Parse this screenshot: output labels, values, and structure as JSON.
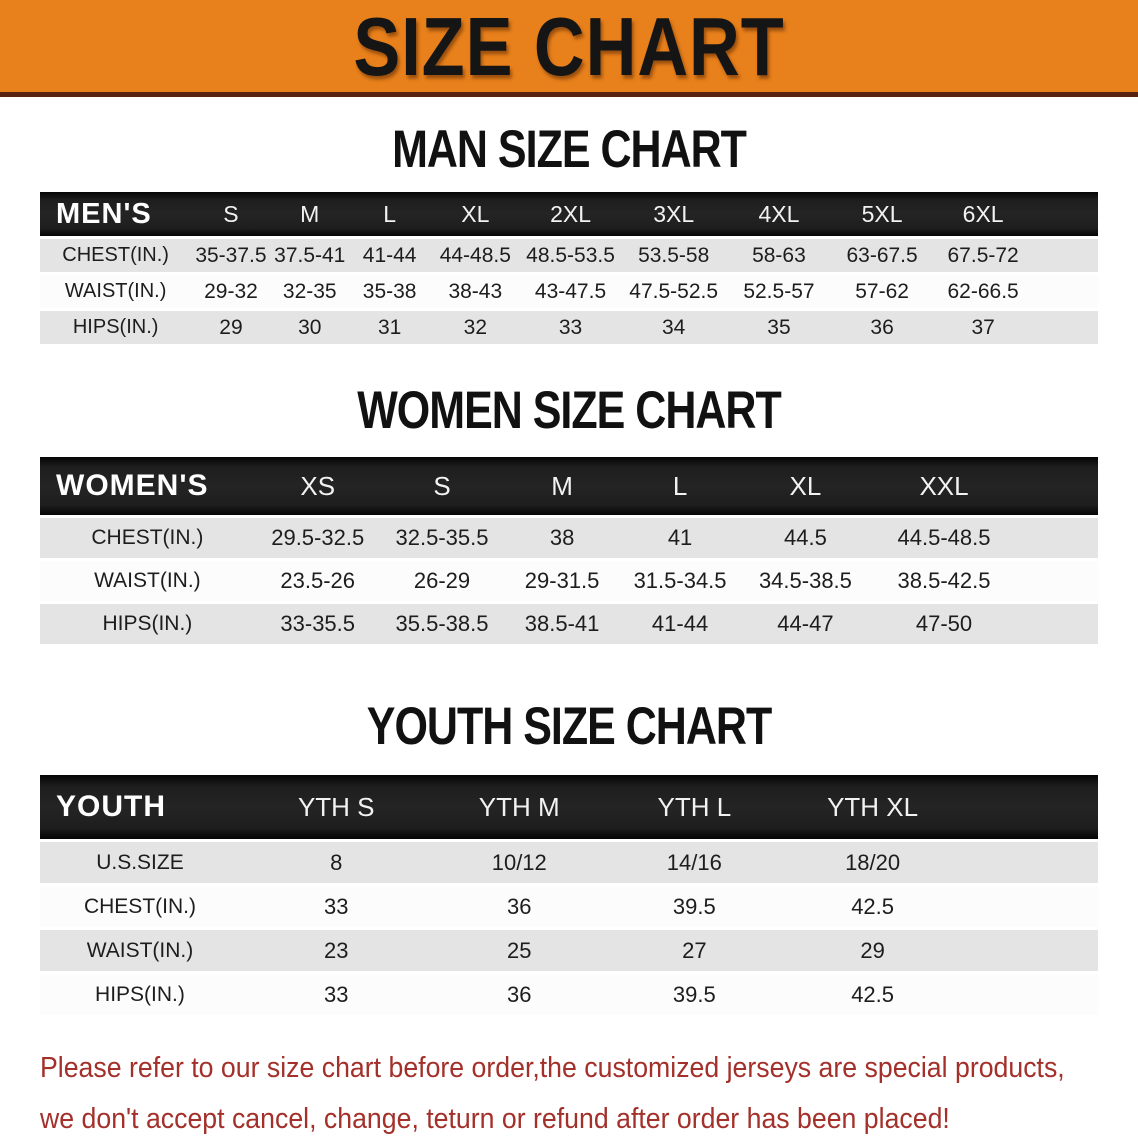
{
  "banner": {
    "title": "SIZE CHART"
  },
  "colors": {
    "banner_bg": "#e8801b",
    "banner_border": "#55230f",
    "banner_text": "#151515",
    "header_bar_bg": "#1e1e1e",
    "header_bar_text": "#f2f2f2",
    "row_gray": "#e4e4e4",
    "row_white": "#fcfcfc",
    "cell_text": "#1d1d1d",
    "disclaimer_text": "#a3302a"
  },
  "sections": [
    {
      "heading": "MAN SIZE CHART",
      "table_label": "MEN'S",
      "columns": [
        "S",
        "M",
        "L",
        "XL",
        "2XL",
        "3XL",
        "4XL",
        "5XL",
        "6XL"
      ],
      "rows": [
        {
          "label": "CHEST(IN.)",
          "values": [
            "35-37.5",
            "37.5-41",
            "41-44",
            "44-48.5",
            "48.5-53.5",
            "53.5-58",
            "58-63",
            "63-67.5",
            "67.5-72"
          ]
        },
        {
          "label": "WAIST(IN.)",
          "values": [
            "29-32",
            "32-35",
            "35-38",
            "38-43",
            "43-47.5",
            "47.5-52.5",
            "52.5-57",
            "57-62",
            "62-66.5"
          ]
        },
        {
          "label": "HIPS(IN.)",
          "values": [
            "29",
            "30",
            "31",
            "32",
            "33",
            "34",
            "35",
            "36",
            "37"
          ]
        }
      ]
    },
    {
      "heading": "WOMEN SIZE CHART",
      "table_label": "WOMEN'S",
      "columns": [
        "XS",
        "S",
        "M",
        "L",
        "XL",
        "XXL"
      ],
      "rows": [
        {
          "label": "CHEST(IN.)",
          "values": [
            "29.5-32.5",
            "32.5-35.5",
            "38",
            "41",
            "44.5",
            "44.5-48.5"
          ]
        },
        {
          "label": "WAIST(IN.)",
          "values": [
            "23.5-26",
            "26-29",
            "29-31.5",
            "31.5-34.5",
            "34.5-38.5",
            "38.5-42.5"
          ]
        },
        {
          "label": "HIPS(IN.)",
          "values": [
            "33-35.5",
            "35.5-38.5",
            "38.5-41",
            "41-44",
            "44-47",
            "47-50"
          ]
        }
      ]
    },
    {
      "heading": "YOUTH SIZE CHART",
      "table_label": "YOUTH",
      "columns": [
        "YTH S",
        "YTH M",
        "YTH L",
        "YTH XL"
      ],
      "rows": [
        {
          "label": "U.S.SIZE",
          "values": [
            "8",
            "10/12",
            "14/16",
            "18/20"
          ]
        },
        {
          "label": "CHEST(IN.)",
          "values": [
            "33",
            "36",
            "39.5",
            "42.5"
          ]
        },
        {
          "label": "WAIST(IN.)",
          "values": [
            "23",
            "25",
            "27",
            "29"
          ]
        },
        {
          "label": "HIPS(IN.)",
          "values": [
            "33",
            "36",
            "39.5",
            "42.5"
          ]
        }
      ]
    }
  ],
  "disclaimer": {
    "line1": "Please refer to our size chart before order,the customized jerseys are special products,",
    "line2": "we don't accept cancel, change, teturn or refund after order has been placed!"
  }
}
